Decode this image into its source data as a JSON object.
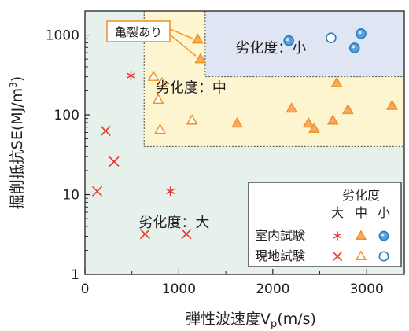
{
  "chart_data": {
    "type": "scatter",
    "x_scale": "linear",
    "y_scale": "log",
    "xlim": [
      0,
      3400
    ],
    "ylim": [
      1,
      2000
    ],
    "x_ticks": [
      0,
      1000,
      2000,
      3000
    ],
    "y_ticks": [
      1,
      10,
      100,
      1000
    ],
    "xlabel_main": "弾性波速度V",
    "xlabel_sub": "p",
    "xlabel_unit": "(m/s)",
    "ylabel_main": "掘削抵抗SE(MJ/m",
    "ylabel_sup": "3",
    "ylabel_end": ")",
    "zones": [
      {
        "name": "劣化度:大",
        "label": "劣化度：大",
        "label_x": 950,
        "label_y": 3.9,
        "color": "#e6f1ec",
        "x_min": 0,
        "y_min": 1
      },
      {
        "name": "劣化度:中",
        "label": "劣化度：中",
        "label_x": 1130,
        "label_y": 190,
        "color": "#fdf5cf",
        "x_min": 630,
        "y_min": 40
      },
      {
        "name": "劣化度:小",
        "label": "劣化度：小",
        "label_x": 1980,
        "label_y": 600,
        "color": "#dfe5f3",
        "x_min": 1280,
        "y_min": 300
      }
    ],
    "colors": {
      "cross": "#e8382e",
      "triangle": "#f0901e",
      "triangle_fill": "#f5a96b",
      "circle": "#2a7fc3",
      "circle_fill": "#5aa0dd"
    },
    "series": [
      {
        "name": "室内試験 大",
        "marker": "asterisk",
        "points": [
          [
            490,
            310
          ],
          [
            910,
            11
          ]
        ]
      },
      {
        "name": "現地試験 大",
        "marker": "x",
        "points": [
          [
            130,
            11
          ],
          [
            220,
            63
          ],
          [
            310,
            26
          ],
          [
            640,
            3.2
          ],
          [
            1080,
            3.2
          ]
        ]
      },
      {
        "name": "室内試験 中",
        "marker": "triangle-filled",
        "points": [
          [
            1200,
            880
          ],
          [
            1230,
            500
          ],
          [
            1620,
            78
          ],
          [
            2200,
            120
          ],
          [
            2380,
            78
          ],
          [
            2440,
            67
          ],
          [
            2640,
            85
          ],
          [
            2680,
            250
          ],
          [
            2800,
            115
          ],
          [
            3270,
            130
          ]
        ]
      },
      {
        "name": "現地試験 中",
        "marker": "triangle-open",
        "points": [
          [
            730,
            300
          ],
          [
            780,
            155
          ],
          [
            820,
            250
          ],
          [
            800,
            65
          ],
          [
            1140,
            85
          ]
        ]
      },
      {
        "name": "室内試験 小",
        "marker": "circle-filled",
        "points": [
          [
            2170,
            850
          ],
          [
            2870,
            690
          ],
          [
            2940,
            1040
          ]
        ]
      },
      {
        "name": "現地試験 小",
        "marker": "circle-open",
        "points": [
          [
            2620,
            920
          ]
        ]
      }
    ],
    "annotation": {
      "text": "亀裂あり",
      "targets": [
        [
          1200,
          880
        ],
        [
          1230,
          500
        ]
      ]
    },
    "legend": {
      "position": "bottom-right",
      "header": "劣化度",
      "columns": [
        "大",
        "中",
        "小"
      ],
      "rows": [
        "室内試験",
        "現地試験"
      ]
    }
  }
}
